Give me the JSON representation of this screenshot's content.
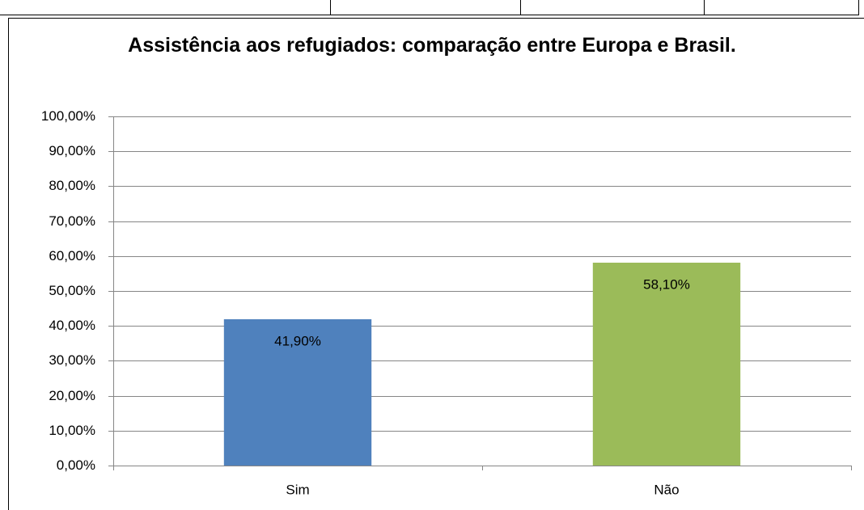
{
  "chart_data": {
    "type": "bar",
    "title": "Assistência aos refugiados: comparação entre Europa e Brasil.",
    "categories": [
      "Sim",
      "Não"
    ],
    "values": [
      41.9,
      58.1
    ],
    "value_labels": [
      "41,90%",
      "58,10%"
    ],
    "colors": [
      "#4f81bd",
      "#9bbb59"
    ],
    "ylim": [
      0,
      100
    ],
    "yticks": [
      {
        "value": 0,
        "label": "0,00%"
      },
      {
        "value": 10,
        "label": "10,00%"
      },
      {
        "value": 20,
        "label": "20,00%"
      },
      {
        "value": 30,
        "label": "30,00%"
      },
      {
        "value": 40,
        "label": "40,00%"
      },
      {
        "value": 50,
        "label": "50,00%"
      },
      {
        "value": 60,
        "label": "60,00%"
      },
      {
        "value": 70,
        "label": "70,00%"
      },
      {
        "value": 80,
        "label": "80,00%"
      },
      {
        "value": 90,
        "label": "90,00%"
      },
      {
        "value": 100,
        "label": "100,00%"
      }
    ],
    "grid": true
  }
}
